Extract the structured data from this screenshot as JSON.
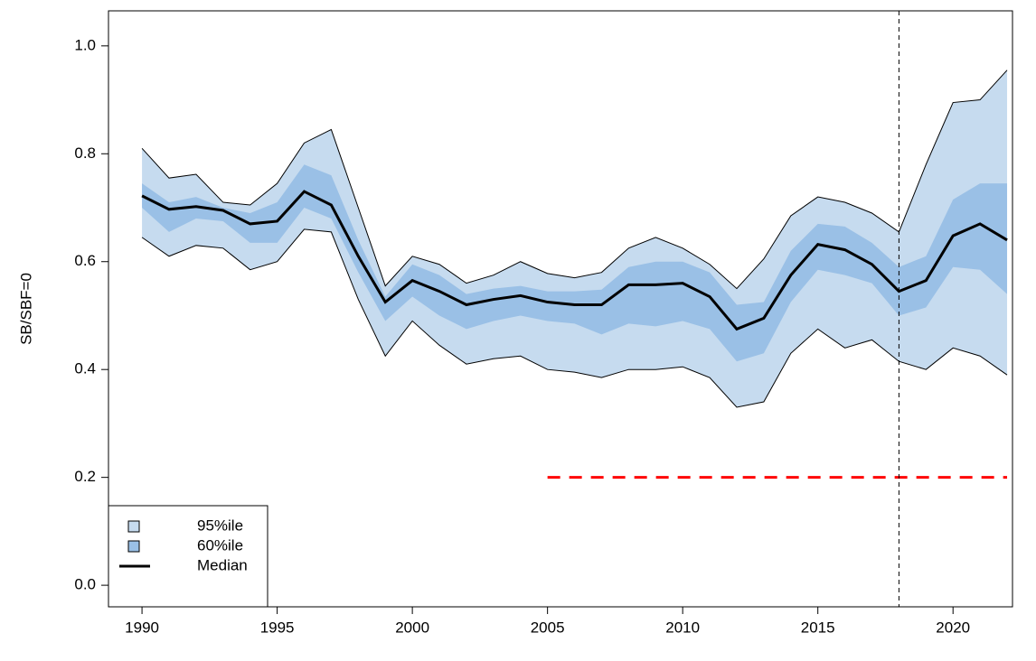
{
  "chart_data": {
    "type": "band",
    "ylabel": "SB/SBF=0",
    "x": [
      1990,
      1991,
      1992,
      1993,
      1994,
      1995,
      1996,
      1997,
      1998,
      1999,
      2000,
      2001,
      2002,
      2003,
      2004,
      2005,
      2006,
      2007,
      2008,
      2009,
      2010,
      2011,
      2012,
      2013,
      2014,
      2015,
      2016,
      2017,
      2018,
      2019,
      2020,
      2021,
      2022
    ],
    "series": [
      {
        "name": "95%ile",
        "color": "#c6dbef",
        "upper": [
          0.81,
          0.755,
          0.762,
          0.71,
          0.705,
          0.745,
          0.82,
          0.845,
          0.7,
          0.555,
          0.61,
          0.595,
          0.56,
          0.575,
          0.6,
          0.578,
          0.57,
          0.58,
          0.625,
          0.645,
          0.625,
          0.595,
          0.55,
          0.605,
          0.685,
          0.72,
          0.71,
          0.69,
          0.655,
          0.78,
          0.895,
          0.9,
          0.955
        ],
        "lower": [
          0.645,
          0.61,
          0.63,
          0.625,
          0.585,
          0.6,
          0.66,
          0.655,
          0.53,
          0.425,
          0.49,
          0.445,
          0.41,
          0.42,
          0.425,
          0.4,
          0.395,
          0.385,
          0.4,
          0.4,
          0.405,
          0.385,
          0.33,
          0.34,
          0.43,
          0.475,
          0.44,
          0.455,
          0.415,
          0.4,
          0.44,
          0.425,
          0.39
        ]
      },
      {
        "name": "60%ile",
        "color": "#9ac0e6",
        "upper": [
          0.745,
          0.71,
          0.72,
          0.7,
          0.69,
          0.71,
          0.78,
          0.76,
          0.64,
          0.535,
          0.595,
          0.575,
          0.54,
          0.55,
          0.555,
          0.545,
          0.545,
          0.548,
          0.59,
          0.6,
          0.6,
          0.58,
          0.52,
          0.525,
          0.62,
          0.67,
          0.665,
          0.635,
          0.59,
          0.61,
          0.715,
          0.745,
          0.745
        ],
        "lower": [
          0.7,
          0.655,
          0.68,
          0.675,
          0.635,
          0.635,
          0.7,
          0.68,
          0.58,
          0.49,
          0.535,
          0.5,
          0.475,
          0.49,
          0.5,
          0.49,
          0.485,
          0.465,
          0.485,
          0.48,
          0.49,
          0.475,
          0.415,
          0.43,
          0.525,
          0.585,
          0.575,
          0.56,
          0.5,
          0.515,
          0.59,
          0.585,
          0.54
        ]
      },
      {
        "name": "Median",
        "color": "#000000",
        "values": [
          0.722,
          0.697,
          0.702,
          0.695,
          0.67,
          0.675,
          0.73,
          0.705,
          0.61,
          0.525,
          0.565,
          0.545,
          0.52,
          0.53,
          0.537,
          0.525,
          0.52,
          0.52,
          0.557,
          0.557,
          0.56,
          0.535,
          0.475,
          0.495,
          0.575,
          0.632,
          0.622,
          0.595,
          0.545,
          0.565,
          0.648,
          0.67,
          0.64
        ]
      }
    ],
    "reference_lines": [
      {
        "axis": "y",
        "value": 0.2,
        "from": 2005,
        "to": 2022,
        "color": "#ff0000"
      },
      {
        "axis": "x",
        "value": 2018,
        "color": "#000000"
      }
    ],
    "xlim": [
      1988.76,
      2022.2
    ],
    "xticks": [
      1990,
      1995,
      2000,
      2005,
      2010,
      2015,
      2020
    ],
    "ylim": [
      -0.04,
      1.065
    ],
    "yticks": [
      {
        "value": 0,
        "label": "0.0"
      },
      0.2,
      0.4,
      0.6,
      0.8,
      {
        "value": 1,
        "label": "1.0"
      }
    ],
    "legend": "bottom-left"
  }
}
